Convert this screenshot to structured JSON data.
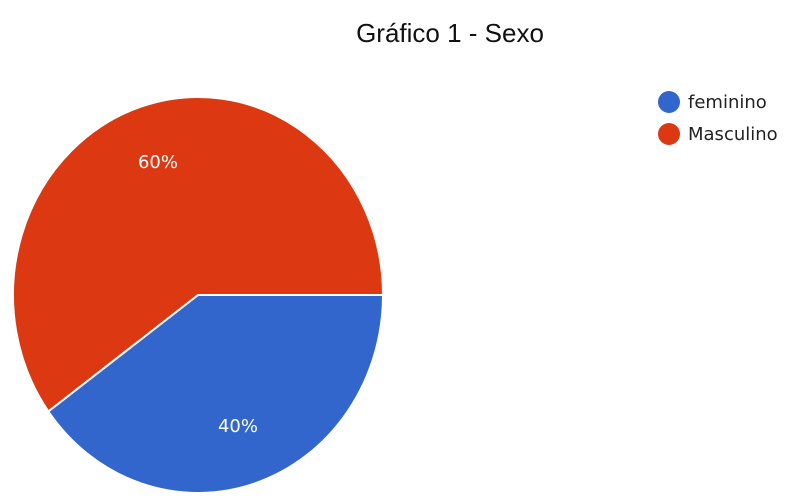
{
  "chart_data": {
    "type": "pie",
    "title": "Gráfico 1 - Sexo",
    "slices": [
      {
        "label": "feminino",
        "value": 40,
        "display": "40%",
        "color": "#3366cc"
      },
      {
        "label": "Masculino",
        "value": 60,
        "display": "60%",
        "color": "#dc3912"
      }
    ],
    "legend_position": "top-right"
  }
}
